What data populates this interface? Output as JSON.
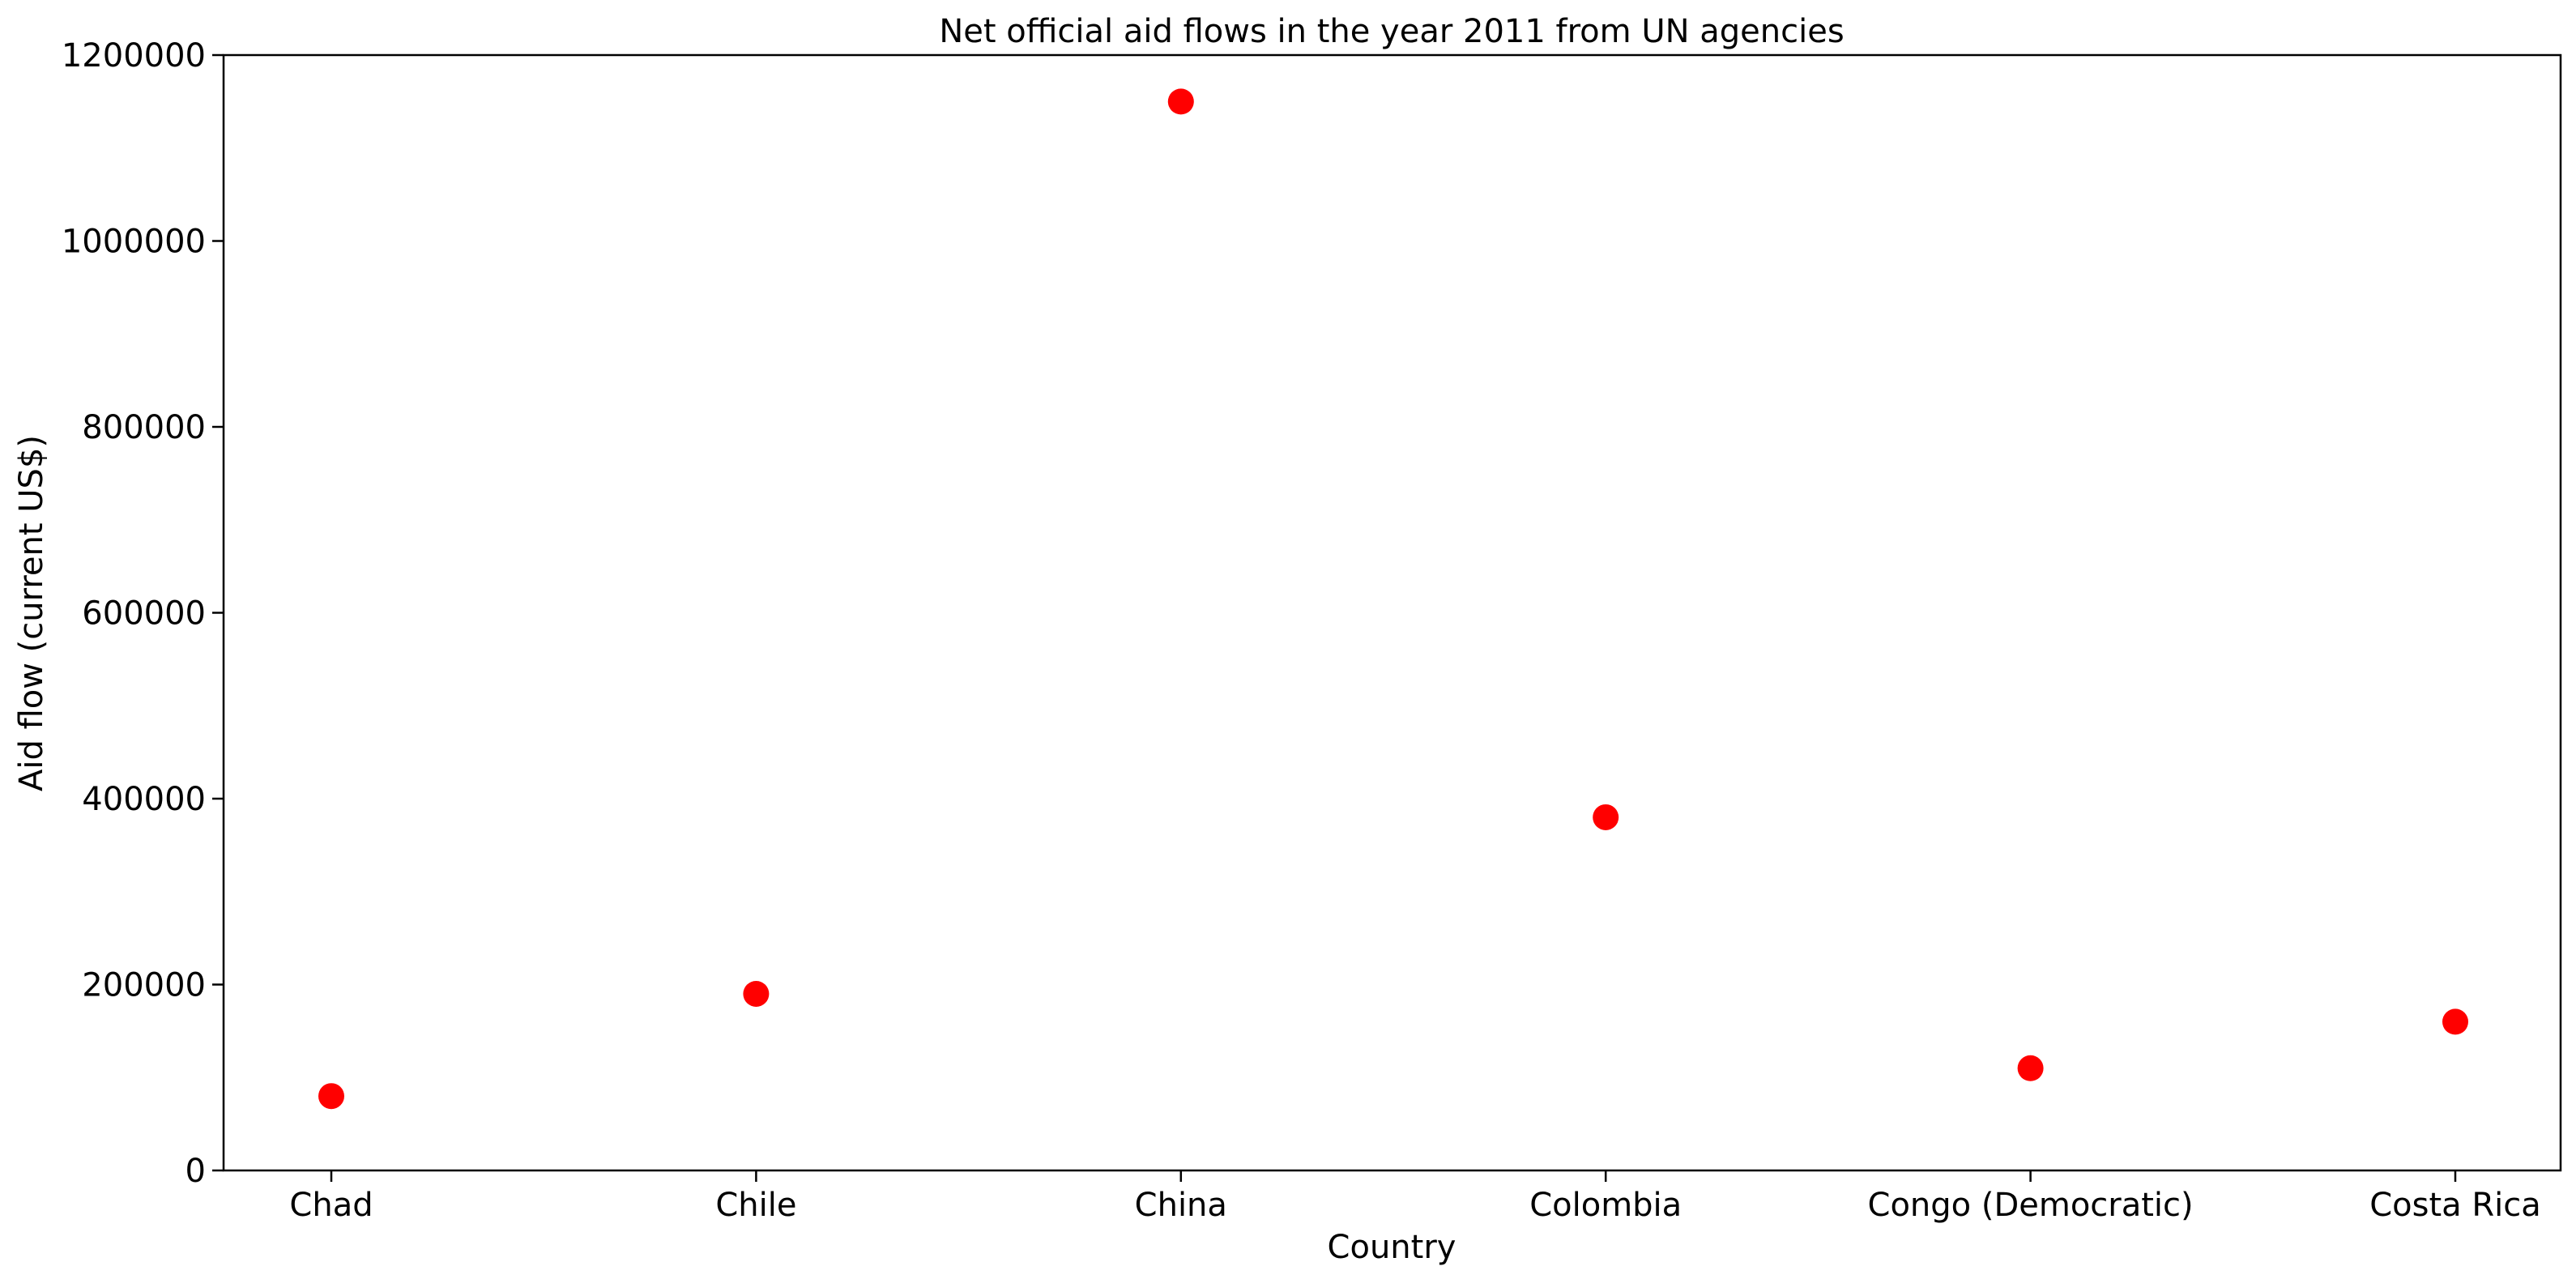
{
  "chart_data": {
    "type": "scatter",
    "title": "Net official aid flows in the year 2011 from UN agencies",
    "xlabel": "Country",
    "ylabel": "Aid flow (current US$)",
    "categories": [
      "Chad",
      "Chile",
      "China",
      "Colombia",
      "Congo (Democratic)",
      "Costa Rica"
    ],
    "values": [
      80000,
      190000,
      1150000,
      380000,
      110000,
      160000
    ],
    "ylim": [
      0,
      1200000
    ],
    "yticks": [
      "0",
      "200000",
      "400000",
      "600000",
      "800000",
      "1000000",
      "1200000"
    ],
    "marker_color": "#ff0000",
    "grid": false,
    "legend": "none"
  }
}
